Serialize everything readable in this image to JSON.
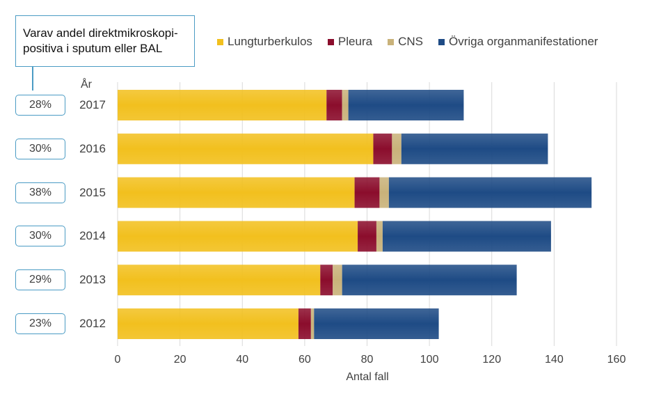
{
  "chart_data": {
    "type": "bar",
    "orientation": "horizontal",
    "stacked": true,
    "categories": [
      "2017",
      "2016",
      "2015",
      "2014",
      "2013",
      "2012"
    ],
    "series": [
      {
        "name": "Lungturberkulos",
        "color": "#f2c01e",
        "values": [
          67,
          82,
          76,
          77,
          65,
          58
        ]
      },
      {
        "name": "Pleura",
        "color": "#8b0d2c",
        "values": [
          5,
          6,
          8,
          6,
          4,
          4
        ]
      },
      {
        "name": "CNS",
        "color": "#c9b27a",
        "values": [
          2,
          3,
          3,
          2,
          3,
          1
        ]
      },
      {
        "name": "Övriga organmanifestationer",
        "color": "#1e4b85",
        "values": [
          37,
          47,
          65,
          54,
          56,
          40
        ]
      }
    ],
    "xlabel": "Antal fall",
    "ylabel": "År",
    "xlim": [
      0,
      160
    ],
    "xticks": [
      "0",
      "20",
      "40",
      "60",
      "80",
      "100",
      "120",
      "140",
      "160"
    ],
    "grid": "vertical",
    "legend_position": "top",
    "annotation": {
      "title": "Varav andel direktmikroskopi-positiva i sputum eller BAL",
      "title_line1": "Varav andel direktmikroskopi-",
      "title_line2": "positiva i sputum eller BAL",
      "values": [
        "28%",
        "30%",
        "38%",
        "30%",
        "29%",
        "23%"
      ]
    }
  }
}
